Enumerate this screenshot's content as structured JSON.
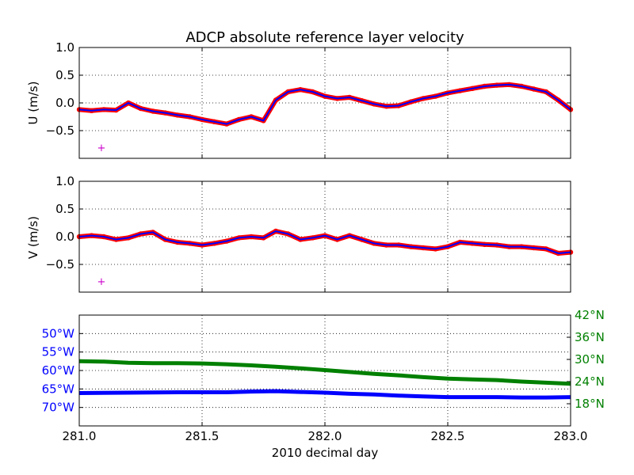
{
  "chart_data": [
    {
      "type": "line",
      "title": "ADCP absolute reference layer velocity",
      "ylabel": "U (m/s)",
      "xlim": [
        281.0,
        283.0
      ],
      "ylim": [
        -1.0,
        1.0
      ],
      "yticks": [
        "1.0",
        "0.5",
        "0.0",
        "−0.5"
      ],
      "ytick_values": [
        1.0,
        0.5,
        0.0,
        -0.5
      ],
      "grid": true,
      "marker": "+",
      "marker_point": [
        281.09,
        -0.8
      ],
      "series": [
        {
          "color": "#ff0000",
          "style": "dots",
          "x": [
            281.0,
            281.05,
            281.1,
            281.15,
            281.2,
            281.25,
            281.3,
            281.35,
            281.4,
            281.45,
            281.5,
            281.55,
            281.6,
            281.65,
            281.7,
            281.75,
            281.8,
            281.85,
            281.9,
            281.95,
            282.0,
            282.05,
            282.1,
            282.15,
            282.2,
            282.25,
            282.3,
            282.35,
            282.4,
            282.45,
            282.5,
            282.55,
            282.6,
            282.65,
            282.7,
            282.75,
            282.8,
            282.85,
            282.9,
            282.95,
            283.0
          ],
          "values": [
            -0.12,
            -0.14,
            -0.12,
            -0.13,
            0.0,
            -0.1,
            -0.15,
            -0.18,
            -0.22,
            -0.25,
            -0.3,
            -0.34,
            -0.38,
            -0.3,
            -0.25,
            -0.32,
            0.05,
            0.2,
            0.24,
            0.2,
            0.12,
            0.08,
            0.1,
            0.04,
            -0.02,
            -0.06,
            -0.05,
            0.02,
            0.08,
            0.12,
            0.18,
            0.22,
            0.26,
            0.3,
            0.32,
            0.33,
            0.3,
            0.25,
            0.2,
            0.05,
            -0.12
          ]
        },
        {
          "color": "#0000ff",
          "style": "line",
          "x": [
            281.0,
            281.05,
            281.1,
            281.15,
            281.2,
            281.25,
            281.3,
            281.35,
            281.4,
            281.45,
            281.5,
            281.55,
            281.6,
            281.65,
            281.7,
            281.75,
            281.8,
            281.85,
            281.9,
            281.95,
            282.0,
            282.05,
            282.1,
            282.15,
            282.2,
            282.25,
            282.3,
            282.35,
            282.4,
            282.45,
            282.5,
            282.55,
            282.6,
            282.65,
            282.7,
            282.75,
            282.8,
            282.85,
            282.9,
            282.95,
            283.0
          ],
          "values": [
            -0.12,
            -0.14,
            -0.12,
            -0.13,
            0.0,
            -0.1,
            -0.15,
            -0.18,
            -0.22,
            -0.25,
            -0.3,
            -0.34,
            -0.38,
            -0.3,
            -0.25,
            -0.32,
            0.05,
            0.2,
            0.24,
            0.2,
            0.12,
            0.08,
            0.1,
            0.04,
            -0.02,
            -0.06,
            -0.05,
            0.02,
            0.08,
            0.12,
            0.18,
            0.22,
            0.26,
            0.3,
            0.32,
            0.33,
            0.3,
            0.25,
            0.2,
            0.05,
            -0.12
          ]
        }
      ]
    },
    {
      "type": "line",
      "ylabel": "V (m/s)",
      "xlim": [
        281.0,
        283.0
      ],
      "ylim": [
        -1.0,
        1.0
      ],
      "yticks": [
        "1.0",
        "0.5",
        "0.0",
        "−0.5"
      ],
      "ytick_values": [
        1.0,
        0.5,
        0.0,
        -0.5
      ],
      "grid": true,
      "marker": "+",
      "marker_point": [
        281.09,
        -0.8
      ],
      "series": [
        {
          "color": "#ff0000",
          "style": "dots",
          "x": [
            281.0,
            281.05,
            281.1,
            281.15,
            281.2,
            281.25,
            281.3,
            281.35,
            281.4,
            281.45,
            281.5,
            281.55,
            281.6,
            281.65,
            281.7,
            281.75,
            281.8,
            281.85,
            281.9,
            281.95,
            282.0,
            282.05,
            282.1,
            282.15,
            282.2,
            282.25,
            282.3,
            282.35,
            282.4,
            282.45,
            282.5,
            282.55,
            282.6,
            282.65,
            282.7,
            282.75,
            282.8,
            282.85,
            282.9,
            282.95,
            283.0
          ],
          "values": [
            0.0,
            0.02,
            0.0,
            -0.05,
            -0.02,
            0.05,
            0.08,
            -0.05,
            -0.1,
            -0.12,
            -0.15,
            -0.12,
            -0.08,
            -0.02,
            0.0,
            -0.02,
            0.1,
            0.05,
            -0.05,
            -0.02,
            0.02,
            -0.05,
            0.02,
            -0.05,
            -0.12,
            -0.15,
            -0.15,
            -0.18,
            -0.2,
            -0.22,
            -0.18,
            -0.1,
            -0.12,
            -0.14,
            -0.15,
            -0.18,
            -0.18,
            -0.2,
            -0.22,
            -0.3,
            -0.28
          ]
        },
        {
          "color": "#0000ff",
          "style": "line",
          "x": [
            281.0,
            281.05,
            281.1,
            281.15,
            281.2,
            281.25,
            281.3,
            281.35,
            281.4,
            281.45,
            281.5,
            281.55,
            281.6,
            281.65,
            281.7,
            281.75,
            281.8,
            281.85,
            281.9,
            281.95,
            282.0,
            282.05,
            282.1,
            282.15,
            282.2,
            282.25,
            282.3,
            282.35,
            282.4,
            282.45,
            282.5,
            282.55,
            282.6,
            282.65,
            282.7,
            282.75,
            282.8,
            282.85,
            282.9,
            282.95,
            283.0
          ],
          "values": [
            0.0,
            0.02,
            0.0,
            -0.05,
            -0.02,
            0.05,
            0.08,
            -0.05,
            -0.1,
            -0.12,
            -0.15,
            -0.12,
            -0.08,
            -0.02,
            0.0,
            -0.02,
            0.1,
            0.05,
            -0.05,
            -0.02,
            0.02,
            -0.05,
            0.02,
            -0.05,
            -0.12,
            -0.15,
            -0.15,
            -0.18,
            -0.2,
            -0.22,
            -0.18,
            -0.1,
            -0.12,
            -0.14,
            -0.15,
            -0.18,
            -0.18,
            -0.2,
            -0.22,
            -0.3,
            -0.28
          ]
        }
      ]
    },
    {
      "type": "line",
      "xlabel": "2010 decimal day",
      "xlim": [
        281.0,
        283.0
      ],
      "xticks": [
        "281.0",
        "281.5",
        "282.0",
        "282.5",
        "283.0"
      ],
      "xtick_values": [
        281.0,
        281.5,
        282.0,
        282.5,
        283.0
      ],
      "grid": true,
      "left_axis": {
        "color": "#0000ff",
        "ylim": [
          -45,
          -75
        ],
        "yticks": [
          "50°W",
          "55°W",
          "60°W",
          "65°W",
          "70°W"
        ],
        "ytick_values": [
          -50,
          -55,
          -60,
          -65,
          -70
        ]
      },
      "right_axis": {
        "color": "#008000",
        "ylim": [
          42,
          12
        ],
        "yticks": [
          "42°N",
          "36°N",
          "30°N",
          "24°N",
          "18°N"
        ],
        "ytick_values": [
          42,
          36,
          30,
          24,
          18
        ]
      },
      "series": [
        {
          "color": "#0000ff",
          "axis": "left",
          "x": [
            281.0,
            281.2,
            281.4,
            281.6,
            281.7,
            281.8,
            281.9,
            282.0,
            282.1,
            282.2,
            282.3,
            282.4,
            282.5,
            282.6,
            282.7,
            282.8,
            282.9,
            283.0
          ],
          "values": [
            -66.1,
            -66.0,
            -65.9,
            -65.9,
            -65.7,
            -65.6,
            -65.8,
            -66.0,
            -66.3,
            -66.5,
            -66.8,
            -67.0,
            -67.2,
            -67.2,
            -67.2,
            -67.3,
            -67.3,
            -67.2
          ]
        },
        {
          "color": "#008000",
          "axis": "right",
          "x": [
            281.0,
            281.1,
            281.2,
            281.3,
            281.4,
            281.5,
            281.6,
            281.7,
            281.8,
            281.9,
            282.0,
            282.1,
            282.2,
            282.3,
            282.4,
            282.5,
            282.6,
            282.7,
            282.8,
            282.9,
            283.0
          ],
          "values": [
            29.5,
            29.4,
            29.1,
            29.0,
            29.0,
            28.9,
            28.7,
            28.4,
            28.0,
            27.6,
            27.1,
            26.6,
            26.1,
            25.7,
            25.2,
            24.8,
            24.6,
            24.4,
            24.0,
            23.7,
            23.4
          ]
        }
      ]
    }
  ]
}
